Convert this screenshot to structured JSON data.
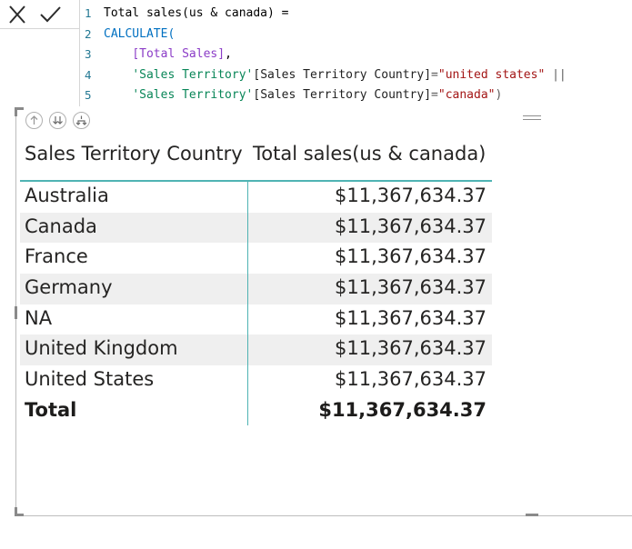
{
  "formula": {
    "lines": [
      {
        "num": "1",
        "tokens": [
          {
            "t": "Total sales(us & canada) =",
            "c": "tok-plain"
          }
        ]
      },
      {
        "num": "2",
        "tokens": [
          {
            "t": "CALCULATE(",
            "c": "tok-func"
          }
        ]
      },
      {
        "num": "3",
        "tokens": [
          {
            "t": "    ",
            "c": "tok-plain"
          },
          {
            "t": "[Total Sales]",
            "c": "tok-measure"
          },
          {
            "t": ",",
            "c": "tok-plain"
          }
        ]
      },
      {
        "num": "4",
        "tokens": [
          {
            "t": "    ",
            "c": "tok-plain"
          },
          {
            "t": "'Sales Territory'",
            "c": "tok-table"
          },
          {
            "t": "[Sales Territory Country]",
            "c": "tok-col"
          },
          {
            "t": "=",
            "c": "tok-op"
          },
          {
            "t": "\"united states\"",
            "c": "tok-str"
          },
          {
            "t": " ||",
            "c": "tok-op"
          }
        ]
      },
      {
        "num": "5",
        "tokens": [
          {
            "t": "    ",
            "c": "tok-plain"
          },
          {
            "t": "'Sales Territory'",
            "c": "tok-table"
          },
          {
            "t": "[Sales Territory Country]",
            "c": "tok-col"
          },
          {
            "t": "=",
            "c": "tok-op"
          },
          {
            "t": "\"canada\"",
            "c": "tok-str"
          },
          {
            "t": ")",
            "c": "tok-op"
          }
        ]
      }
    ]
  },
  "icons": {
    "cancel": "close-icon",
    "confirm": "checkmark-icon",
    "drill_up": "arrow-up-icon",
    "drill_down_all": "double-arrow-down-icon",
    "expand_all": "fork-down-icon",
    "more": "drag-grip-icon"
  },
  "colors": {
    "accent": "#4fb3b3",
    "row_shade": "#efefef",
    "text": "#252423"
  },
  "table": {
    "headers": [
      "Sales Territory Country",
      "Total sales(us & canada)"
    ],
    "rows": [
      [
        "Australia",
        "$11,367,634.37"
      ],
      [
        "Canada",
        "$11,367,634.37"
      ],
      [
        "France",
        "$11,367,634.37"
      ],
      [
        "Germany",
        "$11,367,634.37"
      ],
      [
        "NA",
        "$11,367,634.37"
      ],
      [
        "United Kingdom",
        "$11,367,634.37"
      ],
      [
        "United States",
        "$11,367,634.37"
      ]
    ],
    "total": [
      "Total",
      "$11,367,634.37"
    ]
  }
}
